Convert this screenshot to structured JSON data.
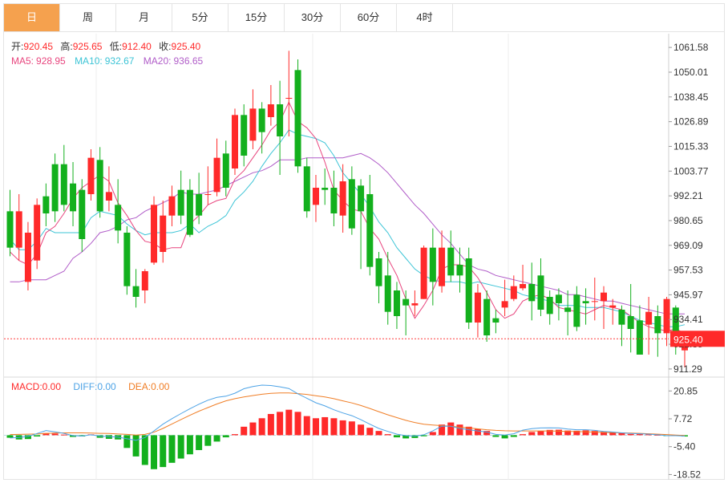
{
  "tabs": [
    {
      "label": "日",
      "active": true
    },
    {
      "label": "周",
      "active": false
    },
    {
      "label": "月",
      "active": false
    },
    {
      "label": "5分",
      "active": false
    },
    {
      "label": "15分",
      "active": false
    },
    {
      "label": "30分",
      "active": false
    },
    {
      "label": "60分",
      "active": false
    },
    {
      "label": "4时",
      "active": false
    }
  ],
  "info": {
    "open_label": "开:",
    "open": "920.45",
    "high_label": "高:",
    "high": "925.65",
    "low_label": "低:",
    "low": "912.40",
    "close_label": "收:",
    "close": "925.40",
    "ma5_label": "MA5:",
    "ma5": "928.95",
    "ma10_label": "MA10:",
    "ma10": "932.67",
    "ma20_label": "MA20:",
    "ma20": "936.65"
  },
  "macd_info": {
    "macd_label": "MACD:",
    "macd": "0.00",
    "diff_label": "DIFF:",
    "diff": "0.00",
    "dea_label": "DEA:",
    "dea": "0.00"
  },
  "colors": {
    "up": "#ff2a2a",
    "down": "#13b01d",
    "ma5": "#e8457e",
    "ma10": "#3cc4d6",
    "ma20": "#b05cc8",
    "diff": "#4da3e6",
    "dea": "#f07e26",
    "tab_active": "#f5a14e"
  },
  "chart_data": [
    {
      "type": "candlestick",
      "y_ticks": [
        "1061.58",
        "1050.01",
        "1038.45",
        "1026.89",
        "1015.33",
        "1003.77",
        "992.21",
        "980.65",
        "969.09",
        "957.53",
        "945.97",
        "934.41",
        "922.85",
        "911.29"
      ],
      "ylim": [
        907.5,
        1068
      ],
      "current_price": "925.40",
      "candles": [
        [
          985,
          968,
          995,
          964
        ],
        [
          968,
          985,
          993,
          962
        ],
        [
          952,
          975,
          980,
          948
        ],
        [
          962,
          988,
          991,
          958
        ],
        [
          992,
          984,
          998,
          978
        ],
        [
          1007,
          985,
          1012,
          980
        ],
        [
          1007,
          988,
          1016,
          985
        ],
        [
          998,
          985,
          1008,
          978
        ],
        [
          995,
          972,
          1000,
          966
        ],
        [
          993,
          1010,
          1014,
          990
        ],
        [
          1009,
          985,
          1015,
          982
        ],
        [
          990,
          994,
          1006,
          985
        ],
        [
          988,
          976,
          1000,
          970
        ],
        [
          975,
          950,
          978,
          946
        ],
        [
          950,
          945,
          958,
          940
        ],
        [
          948,
          957,
          958,
          942
        ],
        [
          961,
          988,
          992,
          960
        ],
        [
          966,
          983,
          990,
          961
        ],
        [
          983,
          992,
          997,
          978
        ],
        [
          995,
          983,
          1004,
          979
        ],
        [
          995,
          974,
          1000,
          973
        ],
        [
          993,
          983,
          1003,
          979
        ],
        [
          993,
          993,
          1006,
          988
        ],
        [
          994,
          1010,
          1019,
          992
        ],
        [
          1012,
          996,
          1018,
          992
        ],
        [
          1005,
          1030,
          1033,
          1002
        ],
        [
          1030,
          1011,
          1035,
          1006
        ],
        [
          1018,
          1033,
          1042,
          1014
        ],
        [
          1033,
          1022,
          1036,
          1012
        ],
        [
          1029,
          1035,
          1044,
          1025
        ],
        [
          1035,
          1020,
          1046,
          1002
        ],
        [
          1038,
          1038,
          1060,
          1020
        ],
        [
          1051,
          1006,
          1056,
          1003
        ],
        [
          1006,
          985,
          1010,
          982
        ],
        [
          988,
          996,
          1002,
          980
        ],
        [
          996,
          995,
          1005,
          988
        ],
        [
          996,
          984,
          1004,
          978
        ],
        [
          983,
          999,
          1007,
          975
        ],
        [
          1000,
          977,
          1006,
          974
        ],
        [
          997,
          985,
          1000,
          958
        ],
        [
          993,
          959,
          1002,
          955
        ],
        [
          963,
          950,
          966,
          942
        ],
        [
          955,
          938,
          966,
          932
        ],
        [
          948,
          936,
          952,
          930
        ],
        [
          944,
          941,
          948,
          927
        ],
        [
          941,
          942,
          948,
          936
        ],
        [
          944,
          968,
          969,
          944
        ],
        [
          968,
          952,
          977,
          941
        ],
        [
          950,
          968,
          976,
          947
        ],
        [
          968,
          955,
          976,
          952
        ],
        [
          960,
          955,
          968,
          947
        ],
        [
          963,
          933,
          968,
          930
        ],
        [
          933,
          947,
          951,
          926
        ],
        [
          944,
          927,
          948,
          924
        ],
        [
          935,
          933,
          939,
          928
        ],
        [
          940,
          943,
          953,
          936
        ],
        [
          944,
          950,
          955,
          943
        ],
        [
          949,
          951,
          960,
          948
        ],
        [
          951,
          943,
          961,
          934
        ],
        [
          955,
          939,
          963,
          936
        ],
        [
          945,
          937,
          948,
          932
        ],
        [
          946,
          942,
          949,
          934
        ],
        [
          940,
          938,
          948,
          927
        ],
        [
          946,
          931,
          950,
          929
        ],
        [
          943,
          942,
          949,
          932
        ],
        [
          943,
          943,
          954,
          934
        ],
        [
          943,
          947,
          950,
          930
        ],
        [
          940,
          941,
          944,
          932
        ],
        [
          939,
          932,
          941,
          922
        ],
        [
          936,
          930,
          951,
          919
        ],
        [
          934,
          918,
          941,
          918
        ],
        [
          932,
          938,
          945,
          918
        ],
        [
          936,
          928,
          941,
          917
        ],
        [
          928,
          944,
          945,
          922
        ],
        [
          940,
          924,
          941,
          918
        ],
        [
          920,
          925,
          926,
          912
        ]
      ],
      "ma5": [
        966,
        962,
        960,
        965,
        975,
        978,
        984,
        991,
        996,
        999,
        1002,
        999,
        989,
        983,
        976,
        971,
        970,
        967,
        968,
        968,
        979,
        983,
        988,
        990,
        991,
        1000,
        1004,
        1010,
        1016,
        1023,
        1027,
        1036,
        1027,
        1024,
        1019,
        1008,
        995,
        990,
        986,
        985,
        977,
        972,
        963,
        955,
        944,
        935,
        941,
        948,
        958,
        960,
        960,
        959,
        954,
        947,
        939,
        935,
        937,
        943,
        945,
        946,
        944,
        940,
        939,
        938,
        937,
        939,
        941,
        940,
        939,
        936,
        933,
        931,
        930,
        929,
        930,
        928
      ],
      "ma10": [
        972,
        967,
        967,
        971,
        977,
        975,
        975,
        975,
        975,
        982,
        985,
        984,
        983,
        979,
        976,
        974,
        975,
        975,
        975,
        976,
        979,
        975,
        978,
        980,
        983,
        990,
        994,
        999,
        1006,
        1012,
        1017,
        1023,
        1021,
        1020,
        1019,
        1017,
        1011,
        1003,
        998,
        993,
        987,
        980,
        975,
        968,
        963,
        958,
        955,
        953,
        952,
        952,
        952,
        951,
        952,
        951,
        950,
        949,
        948,
        946,
        945,
        944,
        943,
        941,
        941,
        941,
        940,
        940,
        940,
        939,
        938,
        936,
        934,
        933,
        932,
        931,
        931,
        932
      ],
      "ma20": [
        952,
        952,
        953,
        953,
        953,
        955,
        957,
        963,
        966,
        970,
        975,
        976,
        978,
        981,
        982,
        985,
        987,
        989,
        991,
        994,
        993,
        993,
        994,
        995,
        997,
        999,
        1001,
        1003,
        1004,
        1006,
        1009,
        1009,
        1009,
        1010,
        1010,
        1010,
        1010,
        1010,
        1011,
        1012,
        1010,
        1007,
        1003,
        998,
        993,
        988,
        984,
        979,
        974,
        970,
        965,
        960,
        958,
        957,
        955,
        954,
        953,
        952,
        951,
        950,
        949,
        948,
        946,
        946,
        945,
        944,
        943,
        943,
        942,
        941,
        940,
        939,
        938,
        937,
        937,
        937
      ]
    },
    {
      "type": "macd",
      "y_ticks": [
        "20.85",
        "7.72",
        "-5.40",
        "-18.52"
      ],
      "ylim": [
        -21,
        27
      ],
      "hist": [
        -1.2,
        -2.0,
        -1.8,
        -0.6,
        1.0,
        0.8,
        0.3,
        -0.8,
        -0.6,
        0.4,
        -1.2,
        -1.7,
        -2.0,
        -6,
        -10,
        -14,
        -16,
        -15,
        -13,
        -11,
        -9,
        -7,
        -5,
        -3,
        -1,
        0.5,
        4,
        6,
        8,
        10,
        11,
        12,
        11,
        9,
        8,
        8.5,
        8,
        7,
        6.5,
        5,
        3.5,
        2,
        0.5,
        -1,
        -1.5,
        -1.3,
        -0.5,
        1.5,
        5,
        6,
        5,
        4,
        3,
        2,
        -0.8,
        -1.5,
        -0.8,
        0.5,
        1.5,
        2,
        2.5,
        2.6,
        2.2,
        2.1,
        2.3,
        2.0,
        1.6,
        1.5,
        1.0,
        0.6,
        0.9,
        0.5,
        0.2,
        -0.4,
        -0.3,
        -0.6
      ],
      "diff": [
        -1.3,
        -1.1,
        -0.6,
        0.8,
        2.2,
        1.6,
        0.9,
        -0.2,
        -0.4,
        0.2,
        -0.4,
        -0.7,
        -0.9,
        -1.7,
        -2.4,
        -1.1,
        2.0,
        5.2,
        7.8,
        10.2,
        12.5,
        14.6,
        16.5,
        17.8,
        18.4,
        19.8,
        21.9,
        22.9,
        23.6,
        23.4,
        22.8,
        22.0,
        19.5,
        17.4,
        15.3,
        13.8,
        12.0,
        10.5,
        9.2,
        7.3,
        5.2,
        3.2,
        1.8,
        0.5,
        -0.2,
        -0.4,
        0.2,
        2.0,
        4.3,
        4.2,
        3.2,
        2.6,
        2.0,
        1.5,
        0.4,
        0.1,
        0.7,
        2.4,
        3.1,
        3.4,
        3.5,
        3.4,
        2.9,
        2.6,
        2.6,
        2.3,
        1.8,
        1.5,
        1.1,
        0.8,
        0.7,
        0.5,
        0.2,
        -0.2,
        -0.2,
        -0.4
      ],
      "dea": [
        0.3,
        0.4,
        0.5,
        0.6,
        0.8,
        1.0,
        1.1,
        1.1,
        1.1,
        1.0,
        0.9,
        0.8,
        0.6,
        0.4,
        0.1,
        0.4,
        1.4,
        3.2,
        5.3,
        7.4,
        9.4,
        11.3,
        13.0,
        14.7,
        16.2,
        17.2,
        18.0,
        18.7,
        19.3,
        19.7,
        19.9,
        19.9,
        19.6,
        19.2,
        18.6,
        18.0,
        17.2,
        16.2,
        15.2,
        14.0,
        12.6,
        11.1,
        9.6,
        8.3,
        7.0,
        6.0,
        5.2,
        4.8,
        4.5,
        4.2,
        3.8,
        3.4,
        3.0,
        2.6,
        2.3,
        2.1,
        2.0,
        2.0,
        2.0,
        2.0,
        2.0,
        1.9,
        1.8,
        1.7,
        1.6,
        1.5,
        1.3,
        1.2,
        1.1,
        1.0,
        0.9,
        0.7,
        0.5,
        0.3,
        0.1,
        -0.1
      ]
    }
  ]
}
